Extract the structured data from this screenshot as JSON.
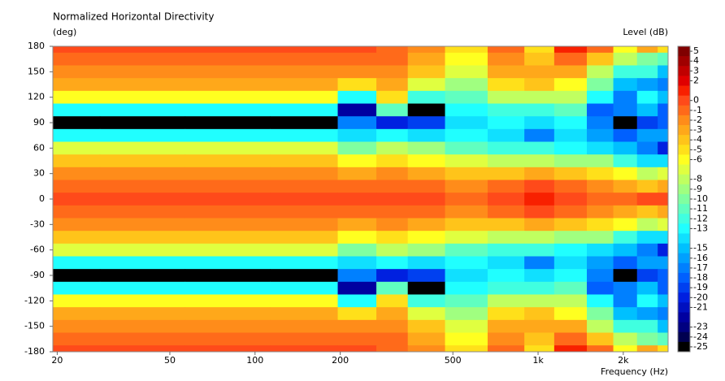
{
  "chart_data": {
    "type": "heatmap",
    "title": "Normalized Horizontal Directivity",
    "y_label": "(deg)",
    "x_label": "Frequency (Hz)",
    "z_label": "Level (dB)",
    "x_scale": "log",
    "xlim": [
      19.3,
      2880
    ],
    "xticks": [
      20,
      50,
      100,
      200,
      500,
      {
        "value": 1000,
        "label": "1k"
      },
      {
        "value": 2000,
        "label": "2k"
      }
    ],
    "ylim": [
      -180,
      180
    ],
    "yticks": [
      180,
      150,
      120,
      90,
      60,
      30,
      0,
      -30,
      -60,
      -90,
      -120,
      -150,
      -180
    ],
    "zlim": [
      -25,
      5
    ],
    "zticks": [
      5,
      4,
      3,
      2,
      0,
      -1,
      -2,
      -3,
      -4,
      -5,
      -6,
      -8,
      -9,
      -10,
      -11,
      -12,
      -13,
      -15,
      -16,
      -17,
      -18,
      -19,
      -20,
      -21,
      -23,
      -24,
      -25
    ],
    "colors": [
      "#800000",
      "#a00000",
      "#c00000",
      "#e00000",
      "#f82000",
      "#ff4a1a",
      "#ff6a1a",
      "#ff8c1a",
      "#ffa81a",
      "#ffc41a",
      "#ffe01a",
      "#ffff20",
      "#e0ff40",
      "#c0ff60",
      "#a0ff80",
      "#80ffa0",
      "#60ffc0",
      "#40ffe0",
      "#20ffff",
      "#10e0ff",
      "#00c0ff",
      "#00a0ff",
      "#0080ff",
      "#0060ff",
      "#0040f0",
      "#0020e0",
      "#0010c0",
      "#0000a0",
      "#000080",
      "#000050",
      "#000000"
    ],
    "x": [
      20,
      40,
      80,
      160,
      240,
      300,
      400,
      550,
      800,
      1000,
      1300,
      1700,
      2000,
      2500,
      2800
    ],
    "y": [
      180,
      165,
      150,
      135,
      120,
      105,
      90,
      75,
      60,
      45,
      30,
      15,
      0,
      -15,
      -30,
      -45,
      -60,
      -75,
      -90,
      -105,
      -120,
      -135,
      -150,
      -165,
      -180
    ],
    "z": [
      [
        0,
        0,
        0,
        0,
        0,
        -1,
        -2,
        -5,
        -1,
        -5,
        1,
        -1,
        -6,
        -3,
        -5
      ],
      [
        -1,
        -1,
        -1,
        -1,
        -1,
        -1,
        -3,
        -6,
        -2,
        -4,
        -1,
        -4,
        -8,
        -10,
        -11
      ],
      [
        -2,
        -2,
        -2,
        -2,
        -2,
        -2,
        -4,
        -7,
        -3,
        -3,
        -3,
        -8,
        -12,
        -12,
        -15
      ],
      [
        -3,
        -3,
        -3,
        -3,
        -5,
        -3,
        -7,
        -9,
        -5,
        -4,
        -6,
        -10,
        -15,
        -16,
        -17
      ],
      [
        -6,
        -6,
        -6,
        -6,
        -13,
        -5,
        -12,
        -11,
        -8,
        -8,
        -8,
        -13,
        -17,
        -13,
        -15
      ],
      [
        -13,
        -13,
        -13,
        -13,
        -22,
        -11,
        -25,
        -13,
        -12,
        -12,
        -11,
        -18,
        -17,
        -15,
        -18
      ],
      [
        -25,
        -25,
        -25,
        -25,
        -17,
        -20,
        -19,
        -14,
        -13,
        -14,
        -13,
        -17,
        -25,
        -19,
        -18
      ],
      [
        -13,
        -13,
        -13,
        -13,
        -14,
        -13,
        -14,
        -13,
        -14,
        -17,
        -14,
        -16,
        -18,
        -16,
        -16
      ],
      [
        -7,
        -7,
        -7,
        -7,
        -10,
        -8,
        -9,
        -11,
        -12,
        -12,
        -13,
        -14,
        -15,
        -17,
        -20
      ],
      [
        -4,
        -4,
        -4,
        -4,
        -6,
        -5,
        -6,
        -7,
        -8,
        -8,
        -9,
        -9,
        -12,
        -14,
        -14
      ],
      [
        -2,
        -2,
        -2,
        -2,
        -3,
        -2,
        -3,
        -4,
        -4,
        -3,
        -4,
        -5,
        -6,
        -8,
        -7
      ],
      [
        -1,
        -1,
        -1,
        -1,
        -1,
        -1,
        -1,
        -2,
        -1,
        0,
        -1,
        -2,
        -3,
        -4,
        -3
      ],
      [
        0,
        0,
        0,
        0,
        0,
        0,
        0,
        -1,
        0,
        1,
        0,
        -1,
        -1,
        0,
        0
      ],
      [
        -1,
        -1,
        -1,
        -1,
        -1,
        -1,
        -1,
        -2,
        -1,
        0,
        -1,
        -2,
        -3,
        -4,
        -3
      ],
      [
        -2,
        -2,
        -2,
        -2,
        -3,
        -2,
        -3,
        -4,
        -4,
        -3,
        -4,
        -5,
        -6,
        -8,
        -7
      ],
      [
        -4,
        -4,
        -4,
        -4,
        -6,
        -5,
        -6,
        -7,
        -8,
        -8,
        -9,
        -9,
        -12,
        -14,
        -14
      ],
      [
        -7,
        -7,
        -7,
        -7,
        -10,
        -8,
        -9,
        -11,
        -12,
        -12,
        -13,
        -14,
        -15,
        -17,
        -20
      ],
      [
        -13,
        -13,
        -13,
        -13,
        -14,
        -13,
        -14,
        -13,
        -14,
        -17,
        -14,
        -16,
        -18,
        -16,
        -16
      ],
      [
        -25,
        -25,
        -25,
        -25,
        -17,
        -20,
        -19,
        -14,
        -13,
        -14,
        -13,
        -17,
        -25,
        -19,
        -18
      ],
      [
        -13,
        -13,
        -13,
        -13,
        -22,
        -11,
        -25,
        -13,
        -12,
        -12,
        -11,
        -18,
        -17,
        -15,
        -18
      ],
      [
        -6,
        -6,
        -6,
        -6,
        -13,
        -5,
        -12,
        -11,
        -8,
        -8,
        -8,
        -13,
        -17,
        -13,
        -15
      ],
      [
        -3,
        -3,
        -3,
        -3,
        -5,
        -3,
        -7,
        -9,
        -5,
        -4,
        -6,
        -10,
        -15,
        -16,
        -17
      ],
      [
        -2,
        -2,
        -2,
        -2,
        -2,
        -2,
        -4,
        -7,
        -3,
        -3,
        -3,
        -8,
        -12,
        -12,
        -15
      ],
      [
        -1,
        -1,
        -1,
        -1,
        -1,
        -1,
        -3,
        -6,
        -2,
        -4,
        -1,
        -4,
        -8,
        -10,
        -11
      ],
      [
        0,
        0,
        0,
        0,
        0,
        -1,
        -2,
        -5,
        -1,
        -5,
        1,
        -1,
        -6,
        -3,
        -5
      ]
    ]
  }
}
